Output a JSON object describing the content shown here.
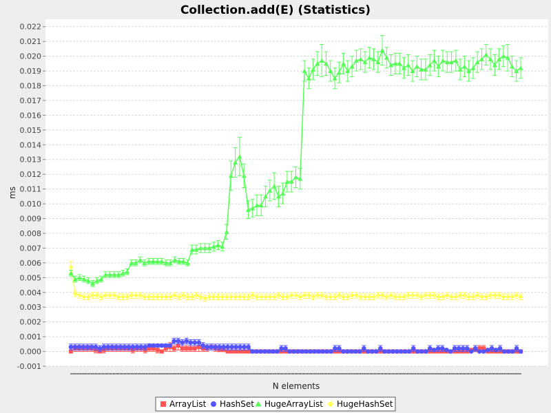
{
  "chart_data": {
    "type": "line",
    "title": "Collection.add(E) (Statistics)",
    "xlabel": "N elements",
    "ylabel": "ms",
    "ylim": [
      -0.001,
      0.0225
    ],
    "yticks": [
      "-0.001",
      "0.000",
      "0.001",
      "0.002",
      "0.003",
      "0.004",
      "0.005",
      "0.006",
      "0.007",
      "0.008",
      "0.009",
      "0.010",
      "0.011",
      "0.012",
      "0.013",
      "0.014",
      "0.015",
      "0.016",
      "0.017",
      "0.018",
      "0.019",
      "0.020",
      "0.021",
      "0.022"
    ],
    "grid": true,
    "legend_position": "bottom",
    "error_bars": true,
    "series": [
      {
        "name": "ArrayList",
        "color": "#ff5555",
        "marker": "square",
        "values": [
          0.0,
          0.0002,
          0.0002,
          0.0002,
          0.0002,
          0.0002,
          0.0001,
          0.0,
          0.0001,
          0.0002,
          0.0002,
          0.0002,
          0.0002,
          0.0002,
          0.0002,
          0.0001,
          0.0002,
          0.0002,
          0.0001,
          0.0002,
          0.0002,
          0.0001,
          0.0,
          0.0002,
          0.0003,
          0.0002,
          0.0004,
          0.0002,
          0.0002,
          0.0002,
          0.0002,
          0.0003,
          0.0002,
          0.0002,
          0.0003,
          0.0002,
          0.0001,
          0.0001,
          0.0,
          0.0,
          0.0,
          0.0,
          0.0,
          0.0,
          0.0,
          0.0,
          0.0,
          0.0,
          0.0,
          0.0,
          0.0,
          0.0,
          0.0,
          0.0,
          0.0,
          0.0,
          0.0,
          0.0,
          0.0,
          0.0,
          0.0,
          0.0,
          0.0,
          0.0,
          0.0,
          0.0,
          0.0,
          0.0,
          0.0,
          0.0,
          0.0,
          0.0,
          0.0,
          0.0,
          0.0,
          0.0,
          0.0,
          0.0,
          0.0,
          0.0,
          0.0,
          0.0,
          0.0,
          0.0,
          0.0,
          0.0,
          0.0,
          0.0,
          0.0,
          0.0,
          0.0,
          0.0,
          0.0,
          0.0,
          0.0,
          0.0,
          0.0,
          0.0001,
          0.0001,
          0.0002,
          0.0002,
          0.0,
          0.0,
          0.0,
          0.0,
          0.0,
          0.0,
          0.0,
          0.0,
          0.0
        ],
        "errors": [
          0.0001,
          0.0002,
          0.0002,
          0.0002,
          0.0002,
          0.0002,
          0.0002,
          0.0001,
          0.0002,
          0.0002,
          0.0002,
          0.0002,
          0.0002,
          0.0002,
          0.0002,
          0.0002,
          0.0002,
          0.0002,
          0.0002,
          0.0002,
          0.0002,
          0.0002,
          0.0001,
          0.0002,
          0.0003,
          0.0002,
          0.0003,
          0.0002,
          0.0002,
          0.0002,
          0.0002,
          0.0003,
          0.0002,
          0.0002,
          0.0002,
          0.0002,
          0.0001,
          0.0001,
          0.0001,
          0.0,
          0.0,
          0.0,
          0.0,
          0.0,
          0.0,
          0.0,
          0.0,
          0.0,
          0.0,
          0.0,
          0.0,
          0.0,
          0.0,
          0.0,
          0.0,
          0.0,
          0.0,
          0.0,
          0.0,
          0.0,
          0.0,
          0.0,
          0.0,
          0.0,
          0.0,
          0.0,
          0.0,
          0.0,
          0.0,
          0.0,
          0.0,
          0.0,
          0.0,
          0.0,
          0.0,
          0.0,
          0.0,
          0.0,
          0.0,
          0.0,
          0.0,
          0.0,
          0.0,
          0.0,
          0.0,
          0.0,
          0.0,
          0.0,
          0.0,
          0.0,
          0.0,
          0.0,
          0.0,
          0.0,
          0.0,
          0.0,
          0.0,
          0.0001,
          0.0001,
          0.0002,
          0.0002,
          0.0,
          0.0,
          0.0,
          0.0,
          0.0,
          0.0,
          0.0,
          0.0,
          0.0
        ]
      },
      {
        "name": "HashSet",
        "color": "#5555ff",
        "marker": "circle",
        "values": [
          0.0003,
          0.0003,
          0.0003,
          0.0003,
          0.0003,
          0.0003,
          0.0003,
          0.0002,
          0.0003,
          0.0003,
          0.0003,
          0.0003,
          0.0003,
          0.0003,
          0.0003,
          0.0003,
          0.0003,
          0.0003,
          0.0003,
          0.0004,
          0.0004,
          0.0004,
          0.0004,
          0.0004,
          0.0004,
          0.0007,
          0.0007,
          0.0006,
          0.0007,
          0.0006,
          0.0006,
          0.0006,
          0.0004,
          0.0003,
          0.0003,
          0.0003,
          0.0003,
          0.0003,
          0.0003,
          0.0003,
          0.0003,
          0.0003,
          0.0003,
          0.0003,
          0.0,
          0.0,
          0.0,
          0.0,
          0.0,
          0.0,
          0.0,
          0.0002,
          0.0002,
          0.0,
          0.0,
          0.0,
          0.0,
          0.0,
          0.0,
          0.0,
          0.0,
          0.0,
          0.0,
          0.0,
          0.0002,
          0.0002,
          0.0,
          0.0,
          0.0,
          0.0,
          0.0,
          0.0002,
          0.0,
          0.0,
          0.0,
          0.0002,
          0.0,
          0.0,
          0.0,
          0.0,
          0.0,
          0.0,
          0.0,
          0.0002,
          0.0,
          0.0,
          0.0,
          0.0002,
          0.0001,
          0.0002,
          0.0002,
          0.0001,
          0.0,
          0.0002,
          0.0002,
          0.0002,
          0.0002,
          0.0,
          0.0002,
          0.0,
          0.0,
          0.0001,
          0.0002,
          0.0001,
          0.0002,
          0.0,
          0.0,
          0.0,
          0.0002,
          0.0
        ],
        "errors": [
          0.0002,
          0.0002,
          0.0002,
          0.0002,
          0.0002,
          0.0002,
          0.0002,
          0.0002,
          0.0002,
          0.0002,
          0.0002,
          0.0002,
          0.0002,
          0.0002,
          0.0002,
          0.0002,
          0.0002,
          0.0002,
          0.0002,
          0.0001,
          0.0001,
          0.0001,
          0.0001,
          0.0001,
          0.0001,
          0.0002,
          0.0002,
          0.0002,
          0.0002,
          0.0002,
          0.0002,
          0.0002,
          0.0002,
          0.0002,
          0.0002,
          0.0002,
          0.0002,
          0.0002,
          0.0002,
          0.0002,
          0.0002,
          0.0002,
          0.0002,
          0.0002,
          0.0,
          0.0,
          0.0,
          0.0,
          0.0,
          0.0,
          0.0,
          0.0002,
          0.0002,
          0.0,
          0.0,
          0.0,
          0.0,
          0.0,
          0.0,
          0.0,
          0.0,
          0.0,
          0.0,
          0.0,
          0.0002,
          0.0002,
          0.0,
          0.0,
          0.0,
          0.0,
          0.0,
          0.0002,
          0.0,
          0.0,
          0.0,
          0.0002,
          0.0,
          0.0,
          0.0,
          0.0,
          0.0,
          0.0,
          0.0,
          0.0002,
          0.0,
          0.0,
          0.0,
          0.0002,
          0.0001,
          0.0002,
          0.0002,
          0.0001,
          0.0,
          0.0002,
          0.0002,
          0.0002,
          0.0002,
          0.0,
          0.0002,
          0.0,
          0.0,
          0.0001,
          0.0002,
          0.0001,
          0.0002,
          0.0,
          0.0,
          0.0,
          0.0002,
          0.0
        ]
      },
      {
        "name": "HugeArrayList",
        "color": "#55ff55",
        "marker": "triangle",
        "values": [
          0.0053,
          0.0049,
          0.005,
          0.0049,
          0.0048,
          0.0046,
          0.0048,
          0.0049,
          0.0052,
          0.0052,
          0.0052,
          0.0052,
          0.0053,
          0.0054,
          0.006,
          0.006,
          0.0062,
          0.006,
          0.0061,
          0.0061,
          0.0061,
          0.0061,
          0.006,
          0.006,
          0.0062,
          0.0061,
          0.0061,
          0.006,
          0.0069,
          0.0069,
          0.007,
          0.007,
          0.007,
          0.0071,
          0.0072,
          0.0071,
          0.0081,
          0.0119,
          0.0128,
          0.0132,
          0.0119,
          0.0096,
          0.0097,
          0.0099,
          0.0099,
          0.0105,
          0.0109,
          0.0112,
          0.0105,
          0.0107,
          0.0115,
          0.0115,
          0.0118,
          0.0117,
          0.019,
          0.0185,
          0.0191,
          0.0195,
          0.0197,
          0.0195,
          0.019,
          0.0185,
          0.0189,
          0.0195,
          0.019,
          0.0193,
          0.0197,
          0.0198,
          0.0196,
          0.0199,
          0.0198,
          0.0196,
          0.0204,
          0.0199,
          0.0194,
          0.0195,
          0.0195,
          0.0192,
          0.0194,
          0.019,
          0.0193,
          0.0191,
          0.0191,
          0.0194,
          0.0197,
          0.0193,
          0.0197,
          0.0196,
          0.0196,
          0.0197,
          0.0191,
          0.0193,
          0.019,
          0.0192,
          0.0196,
          0.0198,
          0.0201,
          0.0198,
          0.0194,
          0.0198,
          0.02,
          0.0199,
          0.0193,
          0.019,
          0.0192
        ],
        "errors": [
          0.0002,
          0.0002,
          0.0002,
          0.0002,
          0.0002,
          0.0002,
          0.0002,
          0.0002,
          0.0002,
          0.0002,
          0.0002,
          0.0002,
          0.0002,
          0.0002,
          0.0002,
          0.0002,
          0.0002,
          0.0002,
          0.0002,
          0.0002,
          0.0002,
          0.0002,
          0.0002,
          0.0002,
          0.0002,
          0.0002,
          0.0002,
          0.0002,
          0.0003,
          0.0003,
          0.0003,
          0.0003,
          0.0003,
          0.0003,
          0.0003,
          0.0003,
          0.0005,
          0.001,
          0.001,
          0.0013,
          0.0008,
          0.0006,
          0.0006,
          0.0007,
          0.0007,
          0.0007,
          0.0007,
          0.0009,
          0.0007,
          0.0007,
          0.0007,
          0.0007,
          0.0007,
          0.0007,
          0.0007,
          0.0007,
          0.0007,
          0.0008,
          0.0011,
          0.0008,
          0.0007,
          0.0007,
          0.0007,
          0.0007,
          0.0007,
          0.0007,
          0.0007,
          0.0007,
          0.0007,
          0.0007,
          0.0007,
          0.0007,
          0.001,
          0.0007,
          0.0007,
          0.0007,
          0.0007,
          0.0007,
          0.0007,
          0.0007,
          0.0007,
          0.0007,
          0.0007,
          0.0007,
          0.0007,
          0.0007,
          0.0007,
          0.0007,
          0.0007,
          0.0007,
          0.0007,
          0.0007,
          0.0007,
          0.0007,
          0.0007,
          0.0007,
          0.0007,
          0.0007,
          0.0007,
          0.0007,
          0.0007,
          0.0009,
          0.0007,
          0.0007,
          0.0007
        ]
      },
      {
        "name": "HugeHashSet",
        "color": "#ffff55",
        "marker": "diamond",
        "values": [
          0.0057,
          0.0039,
          0.0038,
          0.0037,
          0.0037,
          0.0038,
          0.0038,
          0.0037,
          0.0038,
          0.0038,
          0.0038,
          0.0037,
          0.0037,
          0.0037,
          0.0038,
          0.0038,
          0.0038,
          0.0037,
          0.0037,
          0.0037,
          0.0037,
          0.0037,
          0.0037,
          0.0037,
          0.0038,
          0.0037,
          0.0038,
          0.0037,
          0.0037,
          0.0038,
          0.0037,
          0.0036,
          0.0037,
          0.0037,
          0.0037,
          0.0037,
          0.0037,
          0.0037,
          0.0037,
          0.0037,
          0.0037,
          0.0037,
          0.0038,
          0.0037,
          0.0037,
          0.0037,
          0.0037,
          0.0037,
          0.0038,
          0.0037,
          0.0037,
          0.0038,
          0.0038,
          0.0037,
          0.0038,
          0.0038,
          0.0037,
          0.0038,
          0.0038,
          0.0037,
          0.0037,
          0.0037,
          0.0038,
          0.0037,
          0.0037,
          0.0038,
          0.0038,
          0.0037,
          0.0037,
          0.0037,
          0.0037,
          0.0038,
          0.0038,
          0.0037,
          0.0038,
          0.0037,
          0.0037,
          0.0037,
          0.0038,
          0.0038,
          0.0038,
          0.0037,
          0.0038,
          0.0038,
          0.0038,
          0.0037,
          0.0037,
          0.0038,
          0.0037,
          0.0037,
          0.0038,
          0.0038,
          0.0037,
          0.0037,
          0.0038,
          0.0037,
          0.0037,
          0.0038,
          0.0038,
          0.0038,
          0.0037,
          0.0037,
          0.0037,
          0.0038,
          0.0037
        ],
        "errors": [
          0.0004,
          0.0002,
          0.0002,
          0.0002,
          0.0002,
          0.0002,
          0.0002,
          0.0002,
          0.0002,
          0.0002,
          0.0002,
          0.0002,
          0.0002,
          0.0002,
          0.0002,
          0.0002,
          0.0002,
          0.0002,
          0.0002,
          0.0002,
          0.0002,
          0.0002,
          0.0002,
          0.0002,
          0.0002,
          0.0002,
          0.0002,
          0.0002,
          0.0002,
          0.0002,
          0.0002,
          0.0002,
          0.0002,
          0.0002,
          0.0002,
          0.0002,
          0.0002,
          0.0002,
          0.0002,
          0.0002,
          0.0002,
          0.0002,
          0.0002,
          0.0002,
          0.0002,
          0.0002,
          0.0002,
          0.0002,
          0.0002,
          0.0002,
          0.0002,
          0.0002,
          0.0002,
          0.0002,
          0.0002,
          0.0002,
          0.0002,
          0.0002,
          0.0002,
          0.0002,
          0.0002,
          0.0002,
          0.0002,
          0.0002,
          0.0002,
          0.0002,
          0.0002,
          0.0002,
          0.0002,
          0.0002,
          0.0002,
          0.0002,
          0.0002,
          0.0002,
          0.0002,
          0.0002,
          0.0002,
          0.0002,
          0.0002,
          0.0002,
          0.0002,
          0.0002,
          0.0002,
          0.0002,
          0.0002,
          0.0002,
          0.0002,
          0.0002,
          0.0002,
          0.0002,
          0.0002,
          0.0002,
          0.0002,
          0.0002,
          0.0002,
          0.0002,
          0.0002,
          0.0002,
          0.0002,
          0.0002,
          0.0002,
          0.0002,
          0.0002,
          0.0002,
          0.0002
        ]
      }
    ]
  }
}
